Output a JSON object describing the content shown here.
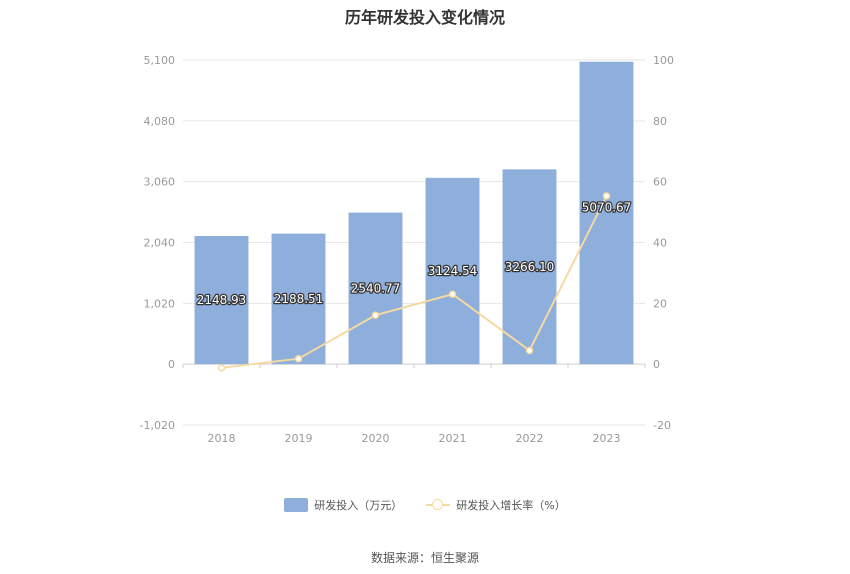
{
  "title": "历年研发投入变化情况",
  "source": "数据来源：恒生聚源",
  "colors": {
    "bar": "#8eaedb",
    "line": "#f5d9a3",
    "grid": "#e6e6e6",
    "axis_text": "#999999"
  },
  "chart_data": {
    "type": "bar",
    "title": "历年研发投入变化情况",
    "categories": [
      "2018",
      "2019",
      "2020",
      "2021",
      "2022",
      "2023"
    ],
    "series": [
      {
        "name": "研发投入（万元）",
        "type": "bar",
        "axis": "left",
        "values": [
          2148.93,
          2188.51,
          2540.77,
          3124.54,
          3266.1,
          5070.67
        ],
        "labels": [
          "2148.93",
          "2188.51",
          "2540.77",
          "3124.54",
          "3266.10",
          "5070.67"
        ]
      },
      {
        "name": "研发投入增长率（%）",
        "type": "line",
        "axis": "right",
        "values": [
          -1.2,
          1.8,
          16.1,
          23.0,
          4.5,
          55.3
        ]
      }
    ],
    "y_left": {
      "min": -1020,
      "max": 5100,
      "ticks": [
        "5,100",
        "4,080",
        "3,060",
        "2,040",
        "1,020",
        "0",
        "-1,020"
      ],
      "tick_values": [
        5100,
        4080,
        3060,
        2040,
        1020,
        0,
        -1020
      ]
    },
    "y_right": {
      "min": -20,
      "max": 100,
      "ticks": [
        "100",
        "80",
        "60",
        "40",
        "20",
        "0",
        "-20"
      ],
      "tick_values": [
        100,
        80,
        60,
        40,
        20,
        0,
        -20
      ]
    },
    "grid": true,
    "legend": "bottom-center"
  }
}
